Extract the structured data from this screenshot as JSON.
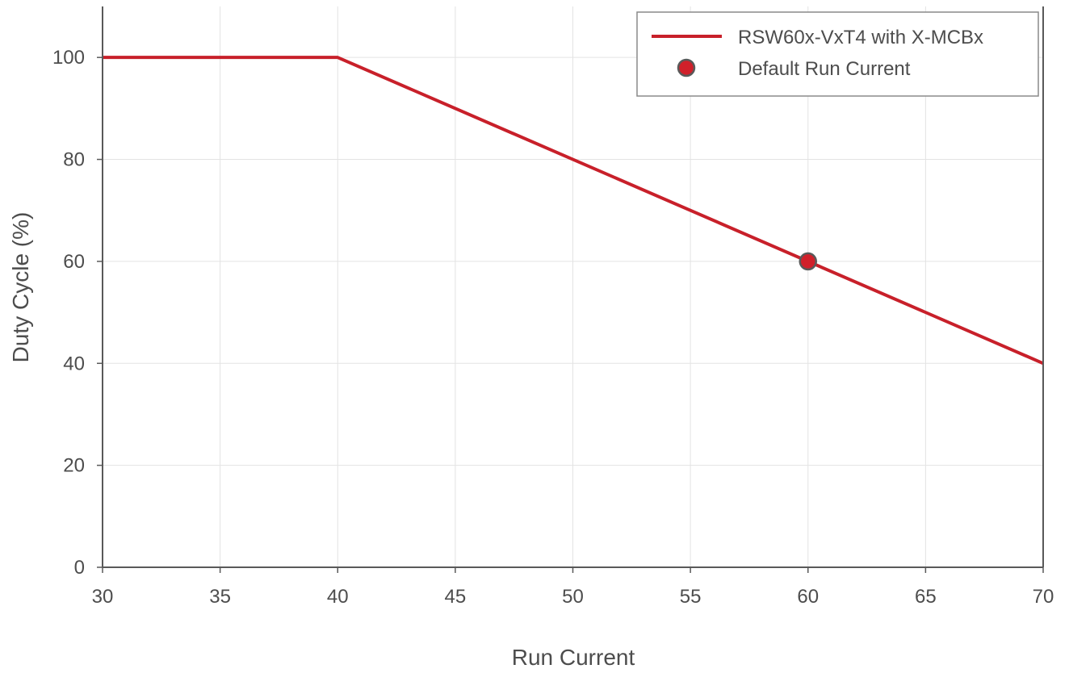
{
  "chart_data": {
    "type": "line",
    "title": "",
    "xlabel": "Run Current",
    "ylabel": "Duty Cycle (%)",
    "xlim": [
      30,
      70
    ],
    "ylim": [
      0,
      110
    ],
    "xticks": [
      30,
      35,
      40,
      45,
      50,
      55,
      60,
      65,
      70
    ],
    "yticks": [
      0,
      20,
      40,
      60,
      80,
      100
    ],
    "grid": true,
    "legend_position": "top-right",
    "series": [
      {
        "name": "RSW60x-VxT4 with X-MCBx",
        "color": "#c8202a",
        "x": [
          30,
          40,
          70
        ],
        "y": [
          100,
          100,
          40
        ]
      }
    ],
    "points": [
      {
        "name": "Default Run Current",
        "color": "#d0202a",
        "edge_color": "#5a5a5a",
        "x": 60,
        "y": 60
      }
    ]
  }
}
